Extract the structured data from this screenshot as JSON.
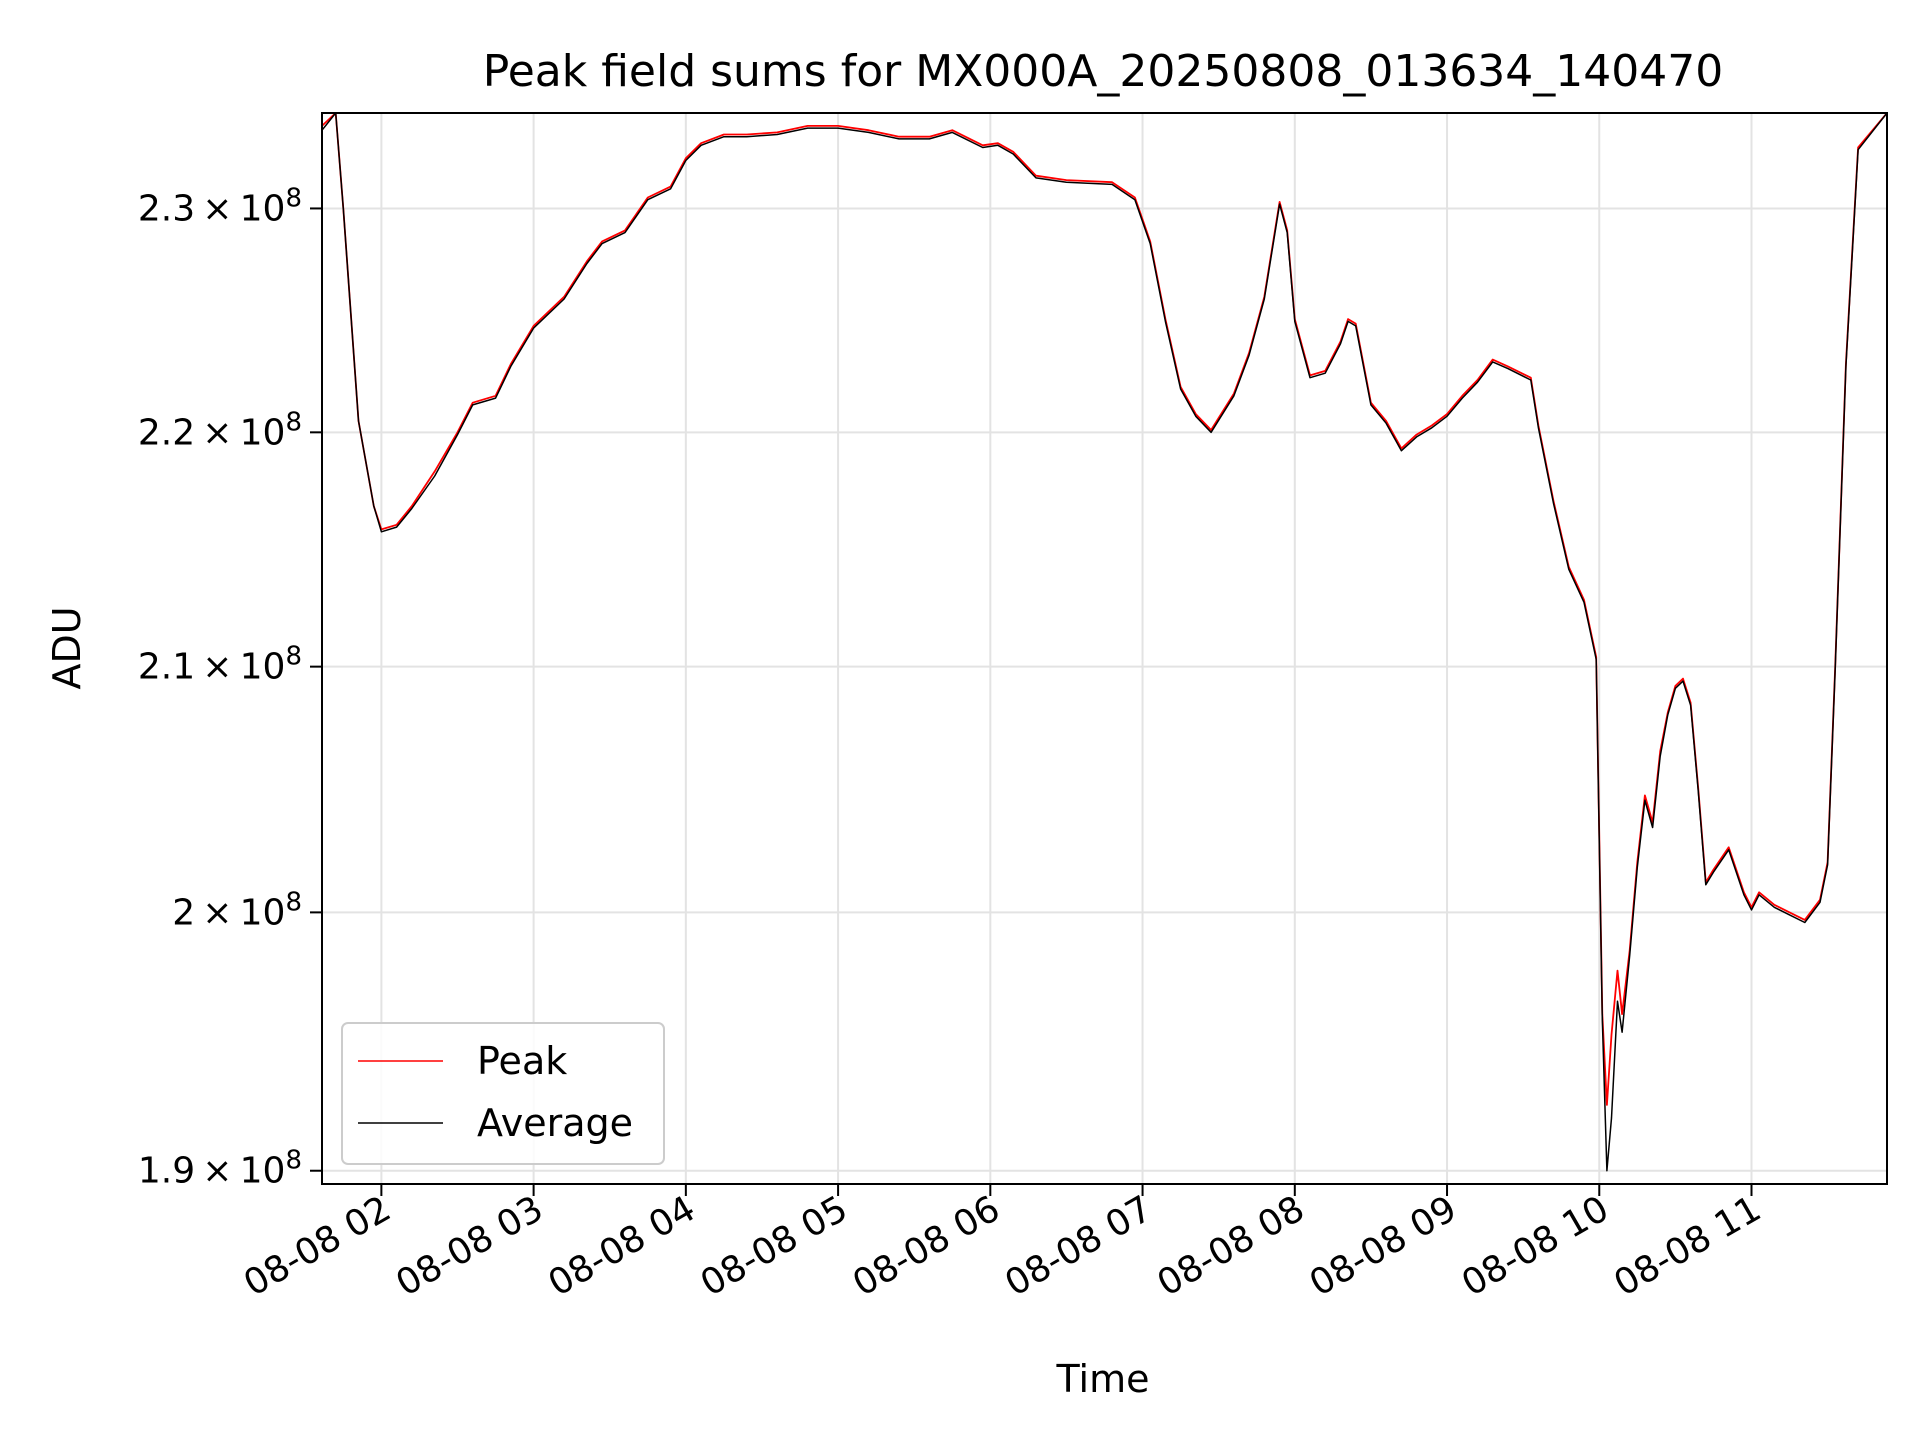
{
  "chart_data": {
    "type": "line",
    "title": "Peak field sums for MX000A_20250808_013634_140470",
    "xlabel": "Time",
    "ylabel": "ADU",
    "x_unit": "hour of 2025-08-08",
    "xlim": [
      1.61,
      11.89
    ],
    "ylim": [
      189500000.0,
      234400000.0
    ],
    "y_scale": "log",
    "grid": true,
    "legend_position": "lower left",
    "x_ticks": [
      {
        "value": 2,
        "label": "08-08 02"
      },
      {
        "value": 3,
        "label": "08-08 03"
      },
      {
        "value": 4,
        "label": "08-08 04"
      },
      {
        "value": 5,
        "label": "08-08 05"
      },
      {
        "value": 6,
        "label": "08-08 06"
      },
      {
        "value": 7,
        "label": "08-08 07"
      },
      {
        "value": 8,
        "label": "08-08 08"
      },
      {
        "value": 9,
        "label": "08-08 09"
      },
      {
        "value": 10,
        "label": "08-08 10"
      },
      {
        "value": 11,
        "label": "08-08 11"
      }
    ],
    "y_ticks": [
      {
        "value": 190000000,
        "mantissa": "1.9",
        "exponent": "8"
      },
      {
        "value": 200000000,
        "mantissa": "2",
        "exponent": "8"
      },
      {
        "value": 210000000,
        "mantissa": "2.1",
        "exponent": "8"
      },
      {
        "value": 220000000,
        "mantissa": "2.2",
        "exponent": "8"
      },
      {
        "value": 230000000,
        "mantissa": "2.3",
        "exponent": "8"
      }
    ],
    "times_label": "x",
    "x": [
      1.61,
      1.7,
      1.75,
      1.85,
      1.95,
      2.0,
      2.1,
      2.2,
      2.35,
      2.5,
      2.6,
      2.75,
      2.85,
      3.0,
      3.2,
      3.35,
      3.45,
      3.6,
      3.75,
      3.9,
      4.0,
      4.1,
      4.25,
      4.4,
      4.6,
      4.8,
      5.0,
      5.2,
      5.4,
      5.6,
      5.75,
      5.95,
      6.05,
      6.15,
      6.3,
      6.5,
      6.8,
      6.95,
      7.05,
      7.15,
      7.25,
      7.35,
      7.45,
      7.6,
      7.7,
      7.8,
      7.9,
      7.95,
      8.0,
      8.1,
      8.2,
      8.3,
      8.35,
      8.4,
      8.5,
      8.6,
      8.7,
      8.8,
      8.9,
      9.0,
      9.1,
      9.2,
      9.3,
      9.4,
      9.55,
      9.6,
      9.7,
      9.8,
      9.9,
      9.98,
      10.02,
      10.05,
      10.08,
      10.12,
      10.15,
      10.2,
      10.25,
      10.3,
      10.35,
      10.4,
      10.45,
      10.5,
      10.55,
      10.6,
      10.65,
      10.7,
      10.75,
      10.85,
      10.95,
      11.0,
      11.05,
      11.15,
      11.25,
      11.35,
      11.45,
      11.5,
      11.55,
      11.62,
      11.7,
      11.89
    ],
    "series": [
      {
        "name": "Peak",
        "color": "#ff0000",
        "values": [
          233800000,
          234400000,
          230000000,
          220500000,
          216800000,
          215800000,
          216000000,
          216800000,
          218300000,
          220000000,
          221300000,
          221600000,
          223000000,
          224700000,
          226000000,
          227600000,
          228500000,
          229000000,
          230500000,
          231000000,
          232300000,
          233000000,
          233400000,
          233400000,
          233500000,
          233800000,
          233800000,
          233600000,
          233300000,
          233300000,
          233600000,
          232900000,
          233000000,
          232600000,
          231500000,
          231300000,
          231200000,
          230500000,
          228500000,
          225000000,
          222000000,
          220800000,
          220100000,
          221700000,
          223500000,
          226000000,
          230300000,
          229000000,
          225000000,
          222500000,
          222700000,
          224000000,
          225000000,
          224800000,
          221300000,
          220500000,
          219300000,
          219900000,
          220300000,
          220800000,
          221600000,
          222300000,
          223200000,
          222900000,
          222400000,
          220300000,
          217000000,
          214200000,
          212800000,
          210400000,
          196000000,
          192500000,
          195200000,
          197700000,
          196000000,
          198500000,
          202000000,
          204700000,
          203600000,
          206500000,
          208100000,
          209200000,
          209500000,
          208500000,
          205000000,
          201200000,
          201700000,
          202600000,
          200800000,
          200200000,
          200800000,
          200300000,
          200000000,
          199700000,
          200500000,
          202000000,
          210000000,
          223000000,
          232800000,
          234400000
        ]
      },
      {
        "name": "Average",
        "color": "#000000",
        "values": [
          233600000,
          234400000,
          230000000,
          220500000,
          216800000,
          215700000,
          215900000,
          216700000,
          218100000,
          219900000,
          221200000,
          221500000,
          222900000,
          224600000,
          225900000,
          227500000,
          228400000,
          228900000,
          230400000,
          230900000,
          232200000,
          232900000,
          233300000,
          233300000,
          233400000,
          233700000,
          233700000,
          233500000,
          233200000,
          233200000,
          233500000,
          232800000,
          232900000,
          232500000,
          231400000,
          231200000,
          231100000,
          230400000,
          228400000,
          224900000,
          221900000,
          220700000,
          220000000,
          221600000,
          223400000,
          225900000,
          230200000,
          228900000,
          224900000,
          222400000,
          222600000,
          223900000,
          224900000,
          224700000,
          221200000,
          220400000,
          219200000,
          219800000,
          220200000,
          220700000,
          221500000,
          222200000,
          223100000,
          222800000,
          222300000,
          220200000,
          216900000,
          214100000,
          212700000,
          210300000,
          195800000,
          190000000,
          192000000,
          196500000,
          195300000,
          198300000,
          201800000,
          204500000,
          203400000,
          206300000,
          208000000,
          209100000,
          209400000,
          208400000,
          204900000,
          201100000,
          201600000,
          202500000,
          200700000,
          200100000,
          200700000,
          200200000,
          199900000,
          199600000,
          200400000,
          201900000,
          209900000,
          222900000,
          232700000,
          234400000
        ]
      }
    ]
  }
}
